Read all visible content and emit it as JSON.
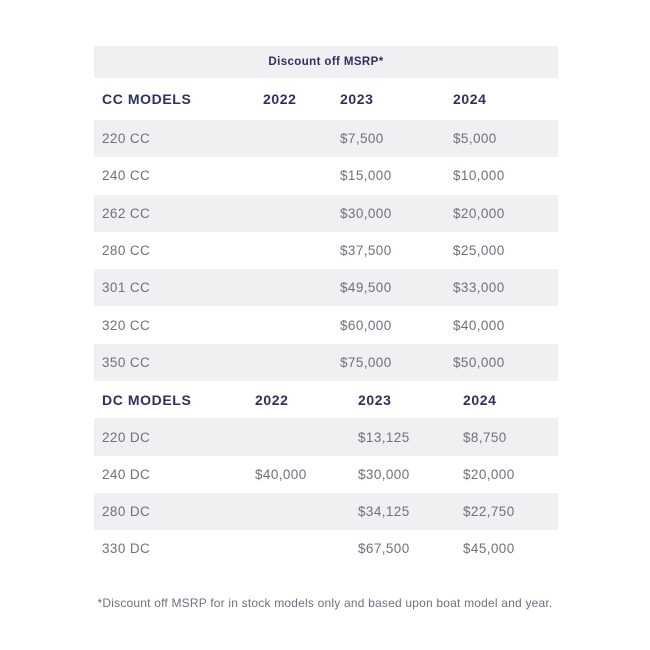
{
  "colors": {
    "heading_navy": "#2e3160",
    "body_gray": "#6e7080",
    "stripe_bg": "#f0eff1",
    "page_bg": "#ffffff"
  },
  "chart_data": {
    "type": "table",
    "title": "Discount off MSRP*",
    "layout": {
      "striped": true,
      "stripe_start": "first-data-row",
      "title_position": "top-center-band"
    },
    "sections": [
      {
        "name": "CC MODELS",
        "columns": [
          "2022",
          "2023",
          "2024"
        ],
        "rows": [
          {
            "model": "220 CC",
            "y2022": "",
            "y2023": "$7,500",
            "y2024": "$5,000"
          },
          {
            "model": "240 CC",
            "y2022": "",
            "y2023": "$15,000",
            "y2024": "$10,000"
          },
          {
            "model": "262 CC",
            "y2022": "",
            "y2023": "$30,000",
            "y2024": "$20,000"
          },
          {
            "model": "280 CC",
            "y2022": "",
            "y2023": "$37,500",
            "y2024": "$25,000"
          },
          {
            "model": "301 CC",
            "y2022": "",
            "y2023": "$49,500",
            "y2024": "$33,000"
          },
          {
            "model": "320 CC",
            "y2022": "",
            "y2023": "$60,000",
            "y2024": "$40,000"
          },
          {
            "model": "350 CC",
            "y2022": "",
            "y2023": "$75,000",
            "y2024": "$50,000"
          }
        ]
      },
      {
        "name": "DC MODELS",
        "columns": [
          "2022",
          "2023",
          "2024"
        ],
        "rows": [
          {
            "model": "220 DC",
            "y2022": "",
            "y2023": "$13,125",
            "y2024": "$8,750"
          },
          {
            "model": "240 DC",
            "y2022": "$40,000",
            "y2023": "$30,000",
            "y2024": "$20,000"
          },
          {
            "model": "280 DC",
            "y2022": "",
            "y2023": "$34,125",
            "y2024": "$22,750"
          },
          {
            "model": "330 DC",
            "y2022": "",
            "y2023": "$67,500",
            "y2024": "$45,000"
          }
        ]
      }
    ],
    "footnote": "*Discount off MSRP for in stock models only and based upon boat model and year."
  }
}
